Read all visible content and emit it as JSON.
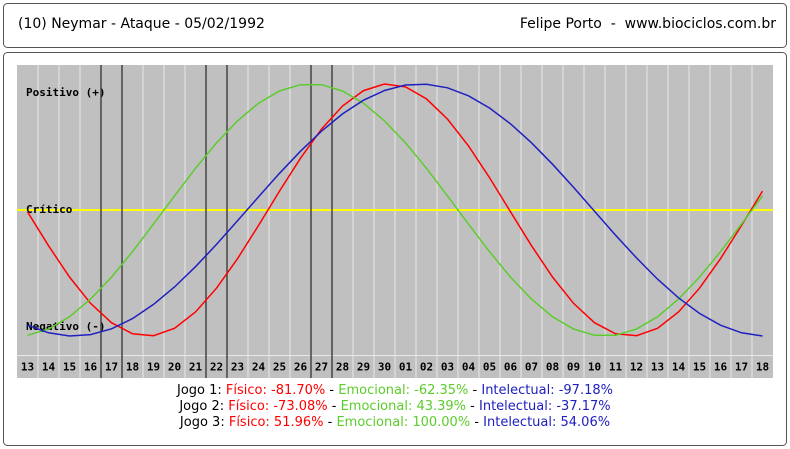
{
  "header": {
    "left": "(10) Neymar - Ataque - 05/02/1992",
    "right": "Felipe Porto  -  www.biociclos.com.br"
  },
  "chart_data": {
    "type": "line",
    "categories": [
      "13",
      "14",
      "15",
      "16",
      "17",
      "18",
      "19",
      "20",
      "21",
      "22",
      "23",
      "24",
      "25",
      "26",
      "27",
      "28",
      "29",
      "30",
      "01",
      "02",
      "03",
      "04",
      "05",
      "06",
      "07",
      "08",
      "09",
      "10",
      "11",
      "12",
      "13",
      "14",
      "15",
      "16",
      "17",
      "18"
    ],
    "series": [
      {
        "color": "#ff0000",
        "values": [
          -1.4,
          -28.3,
          -53.1,
          -74.0,
          -89.4,
          -98.2,
          -99.7,
          -93.8,
          -80.9,
          -62.0,
          -38.6,
          -12.3,
          15.0,
          41.1,
          64.2,
          82.5,
          94.7,
          99.9,
          97.6,
          88.1,
          72.1,
          50.8,
          25.7,
          -1.4,
          -28.3,
          -53.1,
          -74.0,
          -89.4,
          -98.2,
          -99.7,
          -93.8,
          -80.9,
          -62.0,
          -38.6,
          -12.3,
          15.0
        ]
      },
      {
        "color": "#5ccc2c",
        "values": [
          -99.4,
          -94.4,
          -84.7,
          -70.7,
          -53.2,
          -33.1,
          -11.2,
          11.2,
          33.1,
          53.2,
          70.7,
          84.7,
          94.4,
          99.4,
          99.4,
          94.4,
          84.7,
          70.7,
          53.2,
          33.1,
          11.2,
          -11.2,
          -33.1,
          -53.2,
          -70.7,
          -84.7,
          -94.4,
          -99.4,
          -99.4,
          -94.4,
          -84.7,
          -70.7,
          -53.2,
          -33.1,
          -11.2,
          11.2
        ]
      },
      {
        "color": "#2020c0",
        "values": [
          -91.4,
          -97.4,
          -99.9,
          -98.8,
          -94.2,
          -86.1,
          -74.9,
          -61.1,
          -45.0,
          -27.3,
          -8.6,
          10.4,
          29.1,
          46.6,
          62.5,
          76.2,
          87.1,
          94.8,
          99.1,
          99.8,
          96.9,
          90.6,
          80.9,
          68.4,
          53.3,
          36.3,
          18.0,
          -1.0,
          -19.9,
          -38.0,
          -54.8,
          -69.6,
          -82.0,
          -91.4,
          -97.4,
          -99.9
        ]
      }
    ],
    "ylim": [
      -115,
      115
    ],
    "yticks": [
      {
        "value": 100,
        "label": "Positivo (+)"
      },
      {
        "value": 0,
        "label": "Crítico",
        "color": "#ffff00"
      },
      {
        "value": -100,
        "label": "Negativo (-)"
      }
    ],
    "background": "#c0c0c0",
    "games": [
      {
        "day": "17",
        "label": "Jogo 1:",
        "fisico": "Físico: -81.70%",
        "emocional": "Emocional: -62.35%",
        "intelectual": "Intelectual: -97.18%"
      },
      {
        "day": "22",
        "label": "Jogo 2:",
        "fisico": "Físico: -73.08%",
        "emocional": "Emocional: 43.39%",
        "intelectual": "Intelectual: -37.17%"
      },
      {
        "day": "27",
        "label": "Jogo 3:",
        "fisico": "Físico: 51.96%",
        "emocional": "Emocional: 100.00%",
        "intelectual": "Intelectual: 54.06%"
      }
    ],
    "separator": " - "
  }
}
